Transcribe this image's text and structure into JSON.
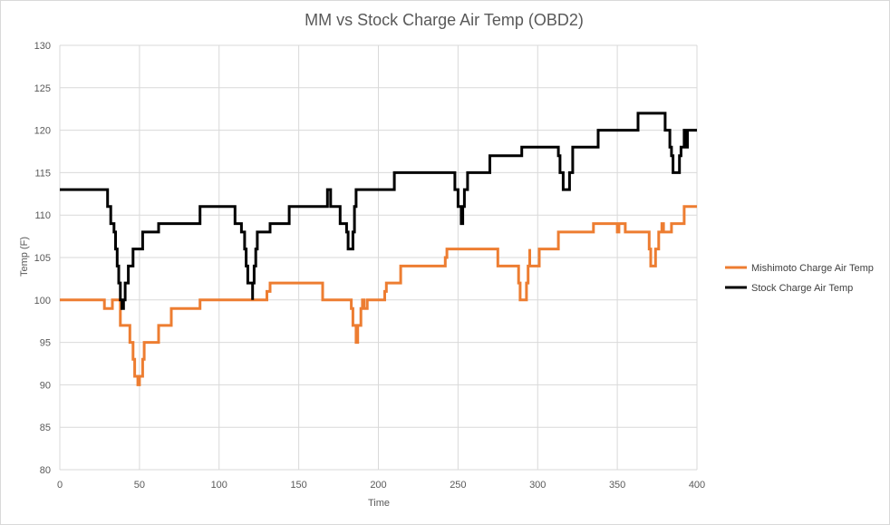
{
  "chart_data": {
    "type": "line",
    "title": "MM vs Stock Charge Air Temp (OBD2)",
    "xlabel": "Time",
    "ylabel": "Temp (F)",
    "xlim": [
      0,
      400
    ],
    "ylim": [
      80,
      130
    ],
    "xticks": [
      0,
      50,
      100,
      150,
      200,
      250,
      300,
      350,
      400
    ],
    "yticks": [
      80,
      85,
      90,
      95,
      100,
      105,
      110,
      115,
      120,
      125,
      130
    ],
    "grid": true,
    "legend_position": "right",
    "series": [
      {
        "name": "Mishimoto Charge Air Temp",
        "color": "#ed7d31",
        "points": [
          [
            0,
            100
          ],
          [
            28,
            100
          ],
          [
            28,
            99
          ],
          [
            33,
            99
          ],
          [
            33,
            100
          ],
          [
            38,
            100
          ],
          [
            38,
            97
          ],
          [
            44,
            97
          ],
          [
            44,
            95
          ],
          [
            46,
            95
          ],
          [
            46,
            93
          ],
          [
            47,
            93
          ],
          [
            47,
            91
          ],
          [
            49,
            91
          ],
          [
            49,
            90
          ],
          [
            50,
            90
          ],
          [
            50,
            91
          ],
          [
            52,
            91
          ],
          [
            52,
            93
          ],
          [
            53,
            93
          ],
          [
            53,
            95
          ],
          [
            62,
            95
          ],
          [
            62,
            97
          ],
          [
            70,
            97
          ],
          [
            70,
            99
          ],
          [
            88,
            99
          ],
          [
            88,
            100
          ],
          [
            130,
            100
          ],
          [
            130,
            101
          ],
          [
            132,
            101
          ],
          [
            132,
            102
          ],
          [
            165,
            102
          ],
          [
            165,
            100
          ],
          [
            183,
            100
          ],
          [
            183,
            99
          ],
          [
            184,
            99
          ],
          [
            184,
            97
          ],
          [
            186,
            97
          ],
          [
            186,
            95
          ],
          [
            187,
            95
          ],
          [
            187,
            97
          ],
          [
            189,
            97
          ],
          [
            189,
            99
          ],
          [
            190,
            99
          ],
          [
            190,
            100
          ],
          [
            191,
            100
          ],
          [
            191,
            99
          ],
          [
            193,
            99
          ],
          [
            193,
            100
          ],
          [
            204,
            100
          ],
          [
            204,
            101
          ],
          [
            205,
            101
          ],
          [
            205,
            102
          ],
          [
            214,
            102
          ],
          [
            214,
            104
          ],
          [
            242,
            104
          ],
          [
            242,
            105
          ],
          [
            243,
            105
          ],
          [
            243,
            106
          ],
          [
            275,
            106
          ],
          [
            275,
            104
          ],
          [
            288,
            104
          ],
          [
            288,
            102
          ],
          [
            289,
            102
          ],
          [
            289,
            100
          ],
          [
            293,
            100
          ],
          [
            293,
            102
          ],
          [
            294,
            102
          ],
          [
            294,
            104
          ],
          [
            295,
            104
          ],
          [
            295,
            106
          ],
          [
            295,
            104
          ],
          [
            301,
            104
          ],
          [
            301,
            106
          ],
          [
            313,
            106
          ],
          [
            313,
            108
          ],
          [
            335,
            108
          ],
          [
            335,
            109
          ],
          [
            350,
            109
          ],
          [
            350,
            108
          ],
          [
            351,
            108
          ],
          [
            351,
            109
          ],
          [
            355,
            109
          ],
          [
            355,
            108
          ],
          [
            370,
            108
          ],
          [
            370,
            106
          ],
          [
            371,
            106
          ],
          [
            371,
            104
          ],
          [
            374,
            104
          ],
          [
            374,
            106
          ],
          [
            376,
            106
          ],
          [
            376,
            108
          ],
          [
            378,
            108
          ],
          [
            378,
            109
          ],
          [
            379,
            109
          ],
          [
            379,
            108
          ],
          [
            384,
            108
          ],
          [
            384,
            109
          ],
          [
            392,
            109
          ],
          [
            392,
            111
          ],
          [
            400,
            111
          ]
        ]
      },
      {
        "name": "Stock Charge Air Temp",
        "color": "#000000",
        "points": [
          [
            0,
            113
          ],
          [
            30,
            113
          ],
          [
            30,
            111
          ],
          [
            32,
            111
          ],
          [
            32,
            109
          ],
          [
            34,
            109
          ],
          [
            34,
            108
          ],
          [
            35,
            108
          ],
          [
            35,
            106
          ],
          [
            36,
            106
          ],
          [
            36,
            104
          ],
          [
            37,
            104
          ],
          [
            37,
            102
          ],
          [
            38,
            102
          ],
          [
            38,
            100
          ],
          [
            39,
            100
          ],
          [
            39,
            99
          ],
          [
            40,
            99
          ],
          [
            40,
            100
          ],
          [
            41,
            100
          ],
          [
            41,
            102
          ],
          [
            43,
            102
          ],
          [
            43,
            104
          ],
          [
            46,
            104
          ],
          [
            46,
            106
          ],
          [
            52,
            106
          ],
          [
            52,
            108
          ],
          [
            62,
            108
          ],
          [
            62,
            109
          ],
          [
            88,
            109
          ],
          [
            88,
            111
          ],
          [
            110,
            111
          ],
          [
            110,
            109
          ],
          [
            114,
            109
          ],
          [
            114,
            108
          ],
          [
            116,
            108
          ],
          [
            116,
            106
          ],
          [
            117,
            106
          ],
          [
            117,
            104
          ],
          [
            118,
            104
          ],
          [
            118,
            102
          ],
          [
            121,
            102
          ],
          [
            121,
            100
          ],
          [
            121,
            102
          ],
          [
            122,
            102
          ],
          [
            122,
            104
          ],
          [
            123,
            104
          ],
          [
            123,
            106
          ],
          [
            124,
            106
          ],
          [
            124,
            108
          ],
          [
            132,
            108
          ],
          [
            132,
            109
          ],
          [
            144,
            109
          ],
          [
            144,
            111
          ],
          [
            168,
            111
          ],
          [
            168,
            113
          ],
          [
            170,
            113
          ],
          [
            170,
            111
          ],
          [
            176,
            111
          ],
          [
            176,
            109
          ],
          [
            180,
            109
          ],
          [
            180,
            108
          ],
          [
            181,
            108
          ],
          [
            181,
            106
          ],
          [
            184,
            106
          ],
          [
            184,
            108
          ],
          [
            185,
            108
          ],
          [
            185,
            111
          ],
          [
            186,
            111
          ],
          [
            186,
            113
          ],
          [
            210,
            113
          ],
          [
            210,
            115
          ],
          [
            248,
            115
          ],
          [
            248,
            113
          ],
          [
            250,
            113
          ],
          [
            250,
            111
          ],
          [
            252,
            111
          ],
          [
            252,
            109
          ],
          [
            253,
            109
          ],
          [
            253,
            111
          ],
          [
            254,
            111
          ],
          [
            254,
            113
          ],
          [
            256,
            113
          ],
          [
            256,
            115
          ],
          [
            270,
            115
          ],
          [
            270,
            117
          ],
          [
            290,
            117
          ],
          [
            290,
            118
          ],
          [
            313,
            118
          ],
          [
            313,
            117
          ],
          [
            314,
            117
          ],
          [
            314,
            115
          ],
          [
            316,
            115
          ],
          [
            316,
            113
          ],
          [
            320,
            113
          ],
          [
            320,
            115
          ],
          [
            322,
            115
          ],
          [
            322,
            118
          ],
          [
            338,
            118
          ],
          [
            338,
            120
          ],
          [
            363,
            120
          ],
          [
            363,
            122
          ],
          [
            380,
            122
          ],
          [
            380,
            120
          ],
          [
            383,
            120
          ],
          [
            383,
            118
          ],
          [
            384,
            118
          ],
          [
            384,
            117
          ],
          [
            385,
            117
          ],
          [
            385,
            115
          ],
          [
            389,
            115
          ],
          [
            389,
            117
          ],
          [
            390,
            117
          ],
          [
            390,
            118
          ],
          [
            392,
            118
          ],
          [
            392,
            120
          ],
          [
            393,
            120
          ],
          [
            393,
            118
          ],
          [
            394,
            118
          ],
          [
            394,
            120
          ],
          [
            400,
            120
          ]
        ]
      }
    ]
  }
}
